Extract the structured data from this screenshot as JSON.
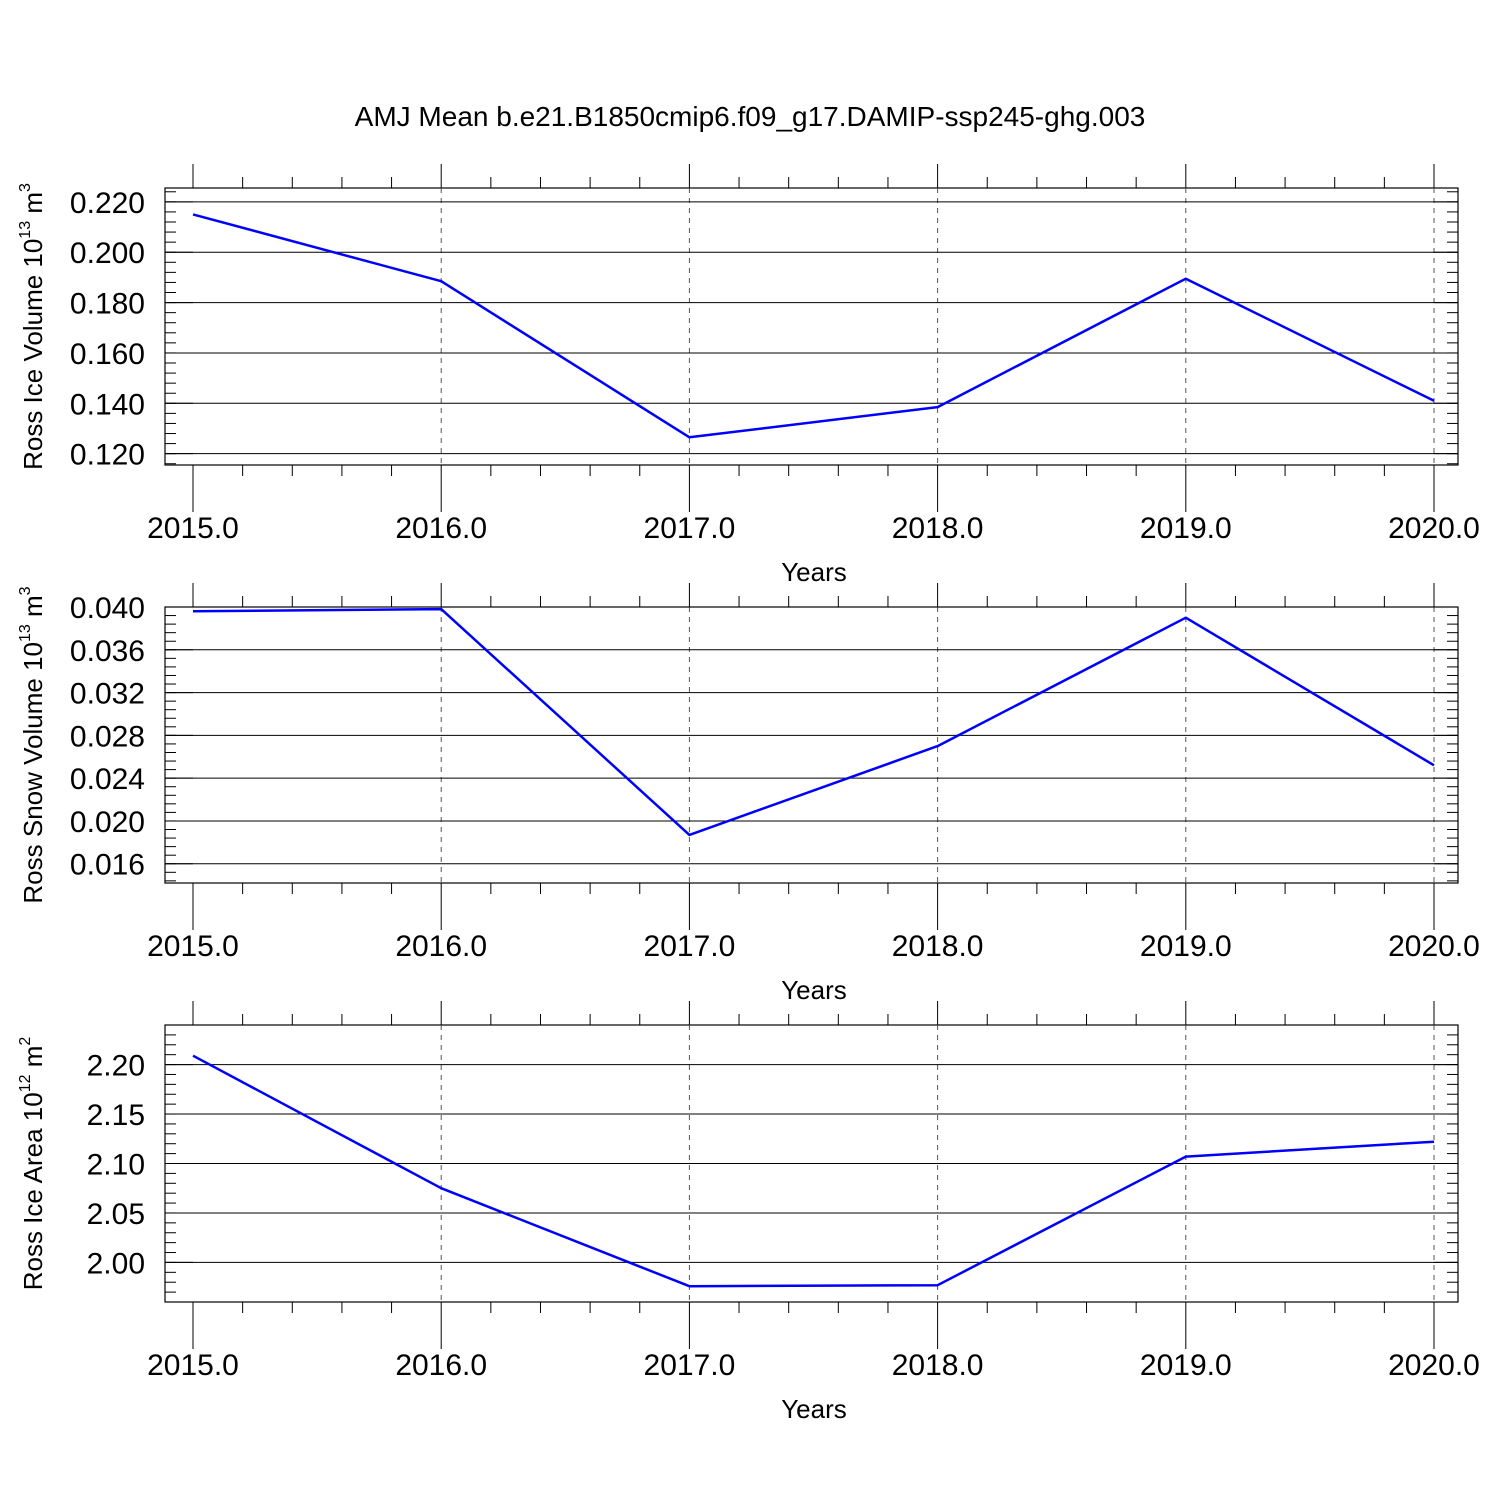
{
  "title": "AMJ Mean b.e21.B1850cmip6.f09_g17.DAMIP-ssp245-ghg.003",
  "line_color": "#0000ff",
  "chart_data": [
    {
      "type": "line",
      "ylabel": {
        "text": "Ross Ice Volume 10",
        "exp": "13",
        "unit": " m",
        "unit_exp": "3"
      },
      "xlabel": "Years",
      "x": [
        2015,
        2016,
        2017,
        2018,
        2019,
        2020
      ],
      "series": [
        {
          "values": [
            0.215,
            0.1885,
            0.1265,
            0.1385,
            0.1895,
            0.141
          ]
        }
      ],
      "xlim": [
        2015,
        2020
      ],
      "ylim": [
        0.1155,
        0.2255
      ],
      "x_ticks": [
        "2015.0",
        "2016.0",
        "2017.0",
        "2018.0",
        "2019.0",
        "2020.0"
      ],
      "y_ticks": [
        {
          "value": 0.12,
          "label": "0.120"
        },
        {
          "value": 0.14,
          "label": "0.140"
        },
        {
          "value": 0.16,
          "label": "0.160"
        },
        {
          "value": 0.18,
          "label": "0.180"
        },
        {
          "value": 0.2,
          "label": "0.200"
        },
        {
          "value": 0.22,
          "label": "0.220"
        }
      ],
      "y_minor_step": 0.004,
      "x_grid": "dashed"
    },
    {
      "type": "line",
      "ylabel": {
        "text": "Ross Snow Volume 10",
        "exp": "13",
        "unit": " m",
        "unit_exp": "3"
      },
      "xlabel": "Years",
      "x": [
        2015,
        2016,
        2017,
        2018,
        2019,
        2020
      ],
      "series": [
        {
          "values": [
            0.0396,
            0.0398,
            0.0187,
            0.027,
            0.039,
            0.0252
          ]
        }
      ],
      "xlim": [
        2015,
        2020
      ],
      "ylim": [
        0.0142,
        0.04
      ],
      "x_ticks": [
        "2015.0",
        "2016.0",
        "2017.0",
        "2018.0",
        "2019.0",
        "2020.0"
      ],
      "y_ticks": [
        {
          "value": 0.016,
          "label": "0.016"
        },
        {
          "value": 0.02,
          "label": "0.020"
        },
        {
          "value": 0.024,
          "label": "0.024"
        },
        {
          "value": 0.028,
          "label": "0.028"
        },
        {
          "value": 0.032,
          "label": "0.032"
        },
        {
          "value": 0.036,
          "label": "0.036"
        },
        {
          "value": 0.04,
          "label": "0.040"
        }
      ],
      "y_minor_step": 0.0008,
      "x_grid": "dashed"
    },
    {
      "type": "line",
      "ylabel": {
        "text": "Ross Ice Area 10",
        "exp": "12",
        "unit": " m",
        "unit_exp": "2"
      },
      "xlabel": "Years",
      "x": [
        2015,
        2016,
        2017,
        2018,
        2019,
        2020
      ],
      "series": [
        {
          "values": [
            2.209,
            2.075,
            1.976,
            1.977,
            2.107,
            2.122
          ]
        }
      ],
      "xlim": [
        2015,
        2020
      ],
      "ylim": [
        1.96,
        2.24
      ],
      "x_ticks": [
        "2015.0",
        "2016.0",
        "2017.0",
        "2018.0",
        "2019.0",
        "2020.0"
      ],
      "y_ticks": [
        {
          "value": 2.0,
          "label": "2.00"
        },
        {
          "value": 2.05,
          "label": "2.05"
        },
        {
          "value": 2.1,
          "label": "2.10"
        },
        {
          "value": 2.15,
          "label": "2.15"
        },
        {
          "value": 2.2,
          "label": "2.20"
        }
      ],
      "y_minor_step": 0.01,
      "x_grid": "dashed"
    }
  ]
}
